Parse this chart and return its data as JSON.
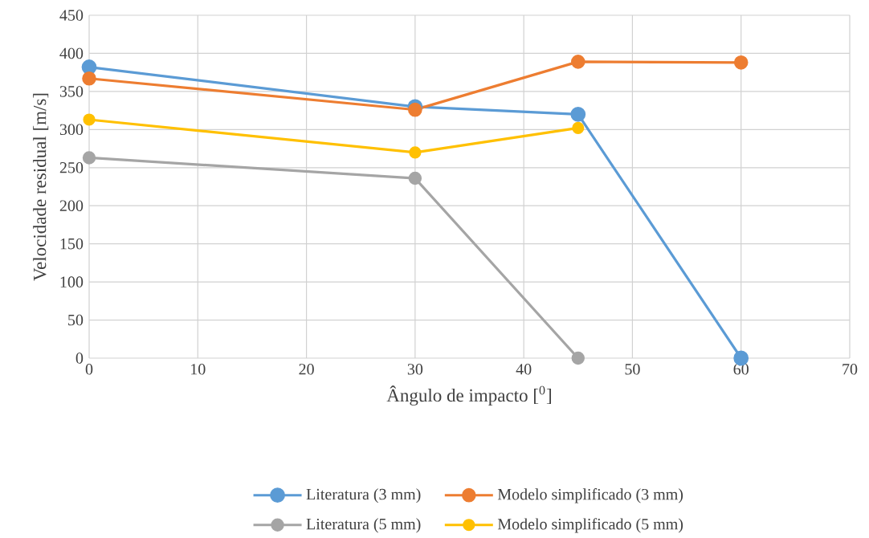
{
  "chart_data": {
    "type": "line",
    "xlabel": "Ângulo de impacto [$^{0}$]",
    "ylabel": "Velocidade residual [m/s]",
    "series": [
      {
        "name": "Literatura (3 mm)",
        "color": "#5b9bd5",
        "x": [
          0,
          30,
          45,
          60
        ],
        "values": [
          382,
          330,
          320,
          0
        ]
      },
      {
        "name": "Modelo simplificado (3 mm)",
        "color": "#ed7d31",
        "x": [
          0,
          30,
          45,
          60
        ],
        "values": [
          367,
          326,
          389,
          388
        ]
      },
      {
        "name": "Literatura (5 mm)",
        "color": "#a5a5a5",
        "x": [
          0,
          30,
          45
        ],
        "values": [
          263,
          236,
          0
        ]
      },
      {
        "name": "Modelo simplificado (5 mm)",
        "color": "#ffc000",
        "x": [
          0,
          30,
          45
        ],
        "values": [
          313,
          270,
          302
        ]
      }
    ],
    "xlim": [
      0,
      70
    ],
    "xticks": [
      0,
      10,
      20,
      30,
      40,
      50,
      60,
      70
    ],
    "ylim": [
      0,
      450
    ],
    "yticks": [
      0,
      50,
      100,
      150,
      200,
      250,
      300,
      350,
      400,
      450
    ],
    "grid": true,
    "legend": "bottom",
    "marker": "circle",
    "line_style": "solid"
  }
}
